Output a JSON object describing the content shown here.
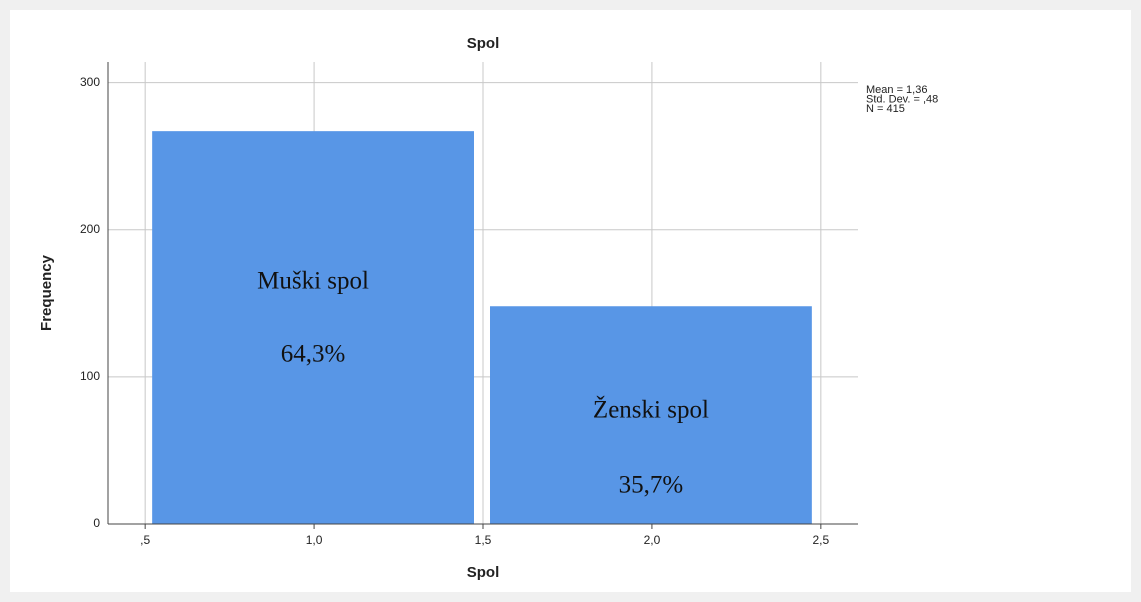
{
  "chart_data": {
    "type": "histogram",
    "title": "Spol",
    "x_label": "Spol",
    "y_label": "Frequency",
    "bins": [
      0.5,
      1.5,
      2.5
    ],
    "counts": [
      267,
      148
    ],
    "color": "#5896e6",
    "xlim": [
      0.39,
      2.61
    ],
    "ylim": [
      0,
      314
    ],
    "xticks": [
      {
        "value": 0.5,
        "label": ",5"
      },
      {
        "value": 1.0,
        "label": "1,0"
      },
      {
        "value": 1.5,
        "label": "1,5"
      },
      {
        "value": 2.0,
        "label": "2,0"
      },
      {
        "value": 2.5,
        "label": "2,5"
      }
    ],
    "yticks": [
      0,
      100,
      200,
      300
    ],
    "grid": true,
    "stats": [
      "Mean = 1,36",
      "Std. Dev. = ,48",
      "N = 415"
    ],
    "bar_labels": [
      {
        "name": "Muški spol",
        "percent": "64,3%"
      },
      {
        "name": "Ženski spol",
        "percent": "35,7%"
      }
    ]
  }
}
